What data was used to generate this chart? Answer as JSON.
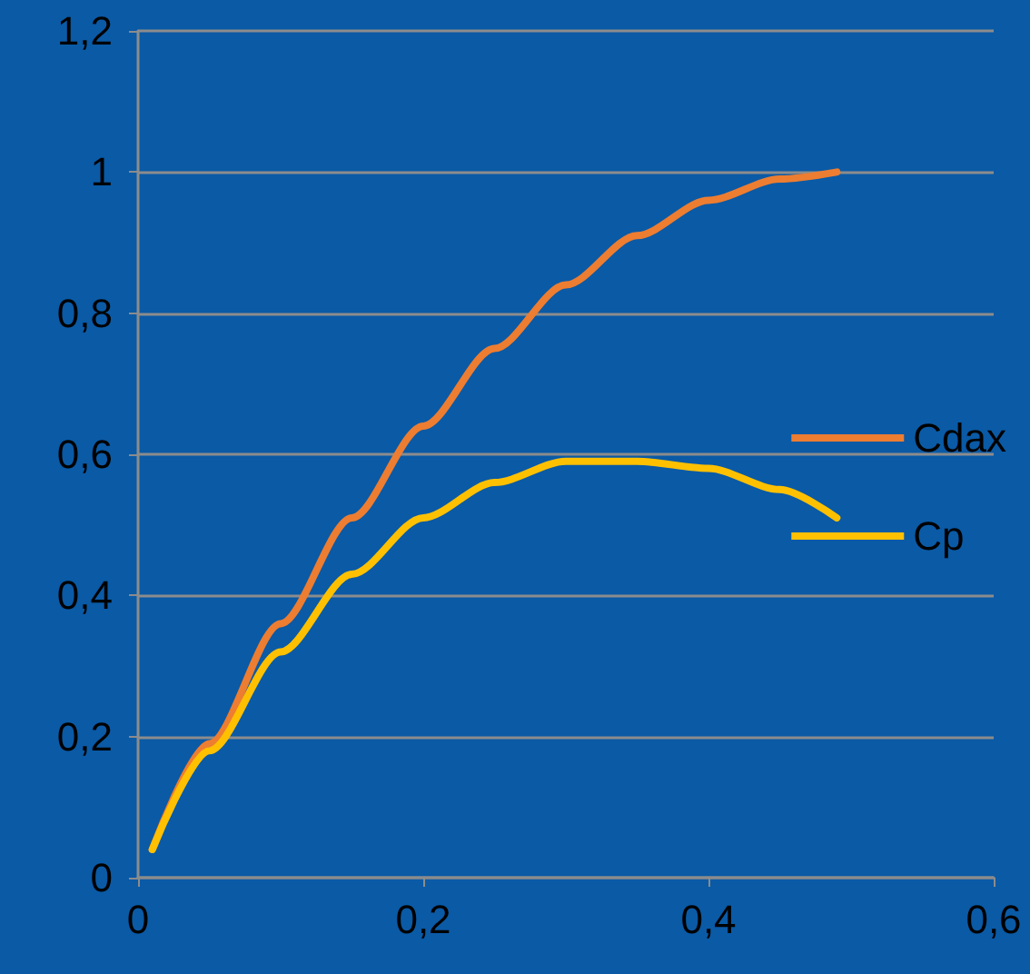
{
  "chart_data": {
    "type": "line",
    "x": [
      0.01,
      0.05,
      0.1,
      0.15,
      0.2,
      0.25,
      0.3,
      0.35,
      0.4,
      0.45,
      0.49
    ],
    "series": [
      {
        "name": "Cdax",
        "color": "#ed7d31",
        "values": [
          0.04,
          0.19,
          0.36,
          0.51,
          0.64,
          0.75,
          0.84,
          0.91,
          0.96,
          0.99,
          1.0
        ]
      },
      {
        "name": "Cp",
        "color": "#ffc000",
        "values": [
          0.04,
          0.18,
          0.32,
          0.43,
          0.51,
          0.56,
          0.59,
          0.59,
          0.58,
          0.55,
          0.51
        ]
      }
    ],
    "xlim": [
      0,
      0.6
    ],
    "xticks": [
      {
        "value": 0,
        "label": "0"
      },
      {
        "value": 0.2,
        "label": "0,2"
      },
      {
        "value": 0.4,
        "label": "0,4"
      },
      {
        "value": 0.6,
        "label": "0,6"
      }
    ],
    "ylim": [
      0,
      1.2
    ],
    "yticks": [
      {
        "value": 0,
        "label": "0"
      },
      {
        "value": 0.2,
        "label": "0,2"
      },
      {
        "value": 0.4,
        "label": "0,4"
      },
      {
        "value": 0.6,
        "label": "0,6"
      },
      {
        "value": 0.8,
        "label": "0,8"
      },
      {
        "value": 1,
        "label": "1"
      },
      {
        "value": 1.2,
        "label": "1,2"
      }
    ],
    "grid": "y",
    "legend": "right",
    "marker": "none",
    "line_style": "solid"
  }
}
